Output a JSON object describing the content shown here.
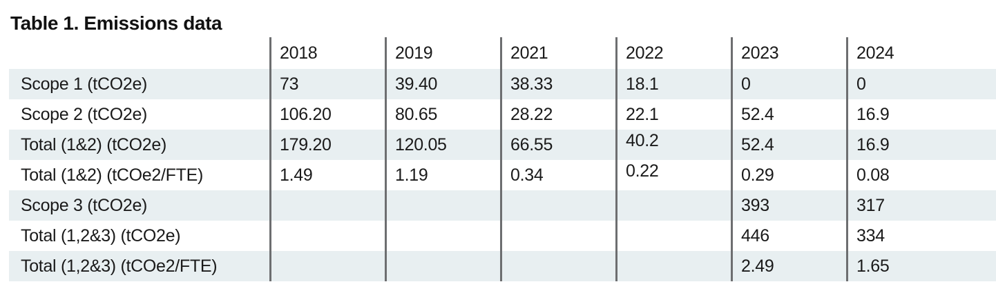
{
  "title": "Table 1. Emissions data",
  "table": {
    "columns": [
      "2018",
      "2019",
      "2021",
      "2022",
      "2023",
      "2024"
    ],
    "rows": [
      {
        "label": "Scope 1 (tCO2e)",
        "values": [
          "73",
          "39.40",
          "38.33",
          "18.1",
          "0",
          "0"
        ]
      },
      {
        "label": "Scope 2 (tCO2e)",
        "values": [
          "106.20",
          "80.65",
          "28.22",
          "22.1",
          "52.4",
          "16.9"
        ]
      },
      {
        "label": "Total (1&2) (tCO2e)",
        "values": [
          "179.20",
          "120.05",
          "66.55",
          "40.2",
          "52.4",
          "16.9"
        ]
      },
      {
        "label": "Total (1&2) (tCOe2/FTE)",
        "values": [
          "1.49",
          "1.19",
          "0.34",
          "0.22",
          "0.29",
          "0.08"
        ]
      },
      {
        "label": "Scope 3 (tCO2e)",
        "values": [
          "",
          "",
          "",
          "",
          "393",
          "317"
        ]
      },
      {
        "label": "Total (1,2&3) (tCO2e)",
        "values": [
          "",
          "",
          "",
          "",
          "446",
          "334"
        ]
      },
      {
        "label": "Total (1,2&3) (tCOe2/FTE)",
        "values": [
          "",
          "",
          "",
          "",
          "2.49",
          "1.65"
        ]
      }
    ]
  },
  "colors": {
    "row_shade": "#e8eff1",
    "divider": "#6d6e70",
    "text": "#1a1a1a",
    "background": "#ffffff"
  },
  "chart_data": {
    "type": "table",
    "title": "Table 1. Emissions data",
    "categories": [
      "2018",
      "2019",
      "2021",
      "2022",
      "2023",
      "2024"
    ],
    "series": [
      {
        "name": "Scope 1 (tCO2e)",
        "values": [
          73,
          39.4,
          38.33,
          18.1,
          0,
          0
        ]
      },
      {
        "name": "Scope 2 (tCO2e)",
        "values": [
          106.2,
          80.65,
          28.22,
          22.1,
          52.4,
          16.9
        ]
      },
      {
        "name": "Total (1&2) (tCO2e)",
        "values": [
          179.2,
          120.05,
          66.55,
          40.2,
          52.4,
          16.9
        ]
      },
      {
        "name": "Total (1&2) (tCOe2/FTE)",
        "values": [
          1.49,
          1.19,
          0.34,
          0.22,
          0.29,
          0.08
        ]
      },
      {
        "name": "Scope 3 (tCO2e)",
        "values": [
          null,
          null,
          null,
          null,
          393,
          317
        ]
      },
      {
        "name": "Total (1,2&3) (tCO2e)",
        "values": [
          null,
          null,
          null,
          null,
          446,
          334
        ]
      },
      {
        "name": "Total (1,2&3) (tCOe2/FTE)",
        "values": [
          null,
          null,
          null,
          null,
          2.49,
          1.65
        ]
      }
    ]
  }
}
